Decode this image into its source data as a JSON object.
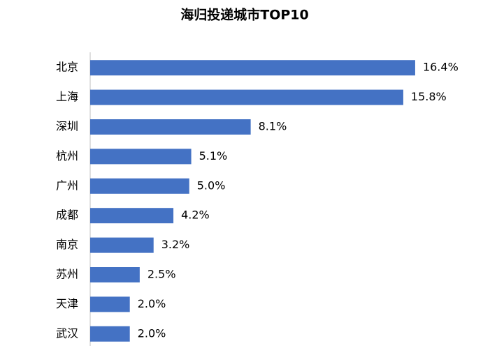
{
  "chart_data": {
    "type": "bar",
    "orientation": "horizontal",
    "title": "海归投递城市TOP10",
    "categories": [
      "北京",
      "上海",
      "深圳",
      "杭州",
      "广州",
      "成都",
      "南京",
      "苏州",
      "天津",
      "武汉"
    ],
    "values": [
      16.4,
      15.8,
      8.1,
      5.1,
      5.0,
      4.2,
      3.2,
      2.5,
      2.0,
      2.0
    ],
    "value_labels": [
      "16.4%",
      "15.8%",
      "8.1%",
      "5.1%",
      "5.0%",
      "4.2%",
      "3.2%",
      "2.5%",
      "2.0%",
      "2.0%"
    ],
    "color": "#4472c4"
  }
}
